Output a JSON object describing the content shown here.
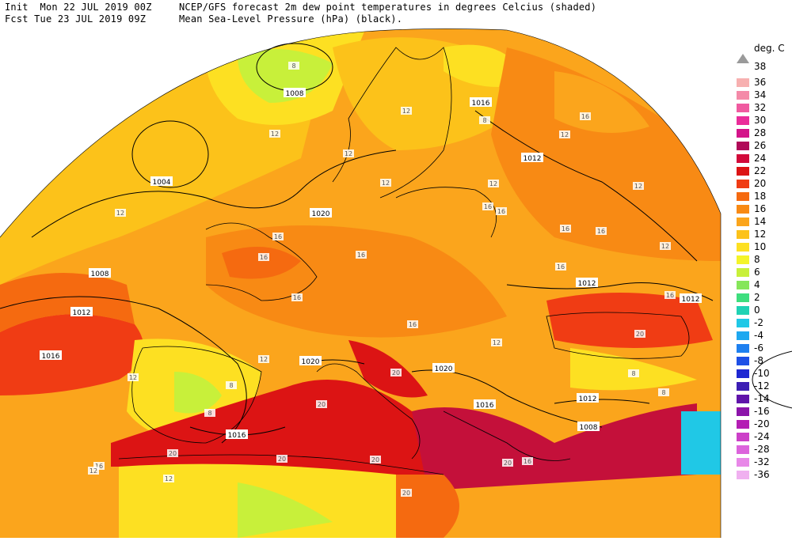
{
  "header": {
    "init_label": "Init  Mon 22 JUL 2019 00Z",
    "fcst_label": "Fcst Tue 23 JUL 2019 09Z",
    "title_line1": "NCEP/GFS forecast 2m dew point temperatures in degrees Celcius (shaded)",
    "title_line2": "Mean Sea-Level Pressure (hPa) (black)."
  },
  "legend": {
    "unit": "deg. C",
    "top_value": "38",
    "entries": [
      {
        "label": "36",
        "color": "#f7b0b0"
      },
      {
        "label": "34",
        "color": "#f48aa8"
      },
      {
        "label": "32",
        "color": "#f05aa0"
      },
      {
        "label": "30",
        "color": "#ea2c9a"
      },
      {
        "label": "28",
        "color": "#d4148a"
      },
      {
        "label": "26",
        "color": "#b00a58"
      },
      {
        "label": "24",
        "color": "#d20a3a"
      },
      {
        "label": "22",
        "color": "#dc1414"
      },
      {
        "label": "20",
        "color": "#f03c14"
      },
      {
        "label": "18",
        "color": "#f56a10"
      },
      {
        "label": "16",
        "color": "#f88a14"
      },
      {
        "label": "14",
        "color": "#fba51c"
      },
      {
        "label": "12",
        "color": "#fcc21a"
      },
      {
        "label": "10",
        "color": "#fde022"
      },
      {
        "label": "8",
        "color": "#f4f42a"
      },
      {
        "label": "6",
        "color": "#c8f03a"
      },
      {
        "label": "4",
        "color": "#86e65a"
      },
      {
        "label": "2",
        "color": "#3ede7e"
      },
      {
        "label": "0",
        "color": "#20d2b4"
      },
      {
        "label": "-2",
        "color": "#20c8e6"
      },
      {
        "label": "-4",
        "color": "#1ea8f0"
      },
      {
        "label": "-6",
        "color": "#1e80f0"
      },
      {
        "label": "-8",
        "color": "#1e50e6"
      },
      {
        "label": "-10",
        "color": "#1e28d2"
      },
      {
        "label": "-12",
        "color": "#3c1eb4"
      },
      {
        "label": "-14",
        "color": "#6014aa"
      },
      {
        "label": "-16",
        "color": "#8c14aa"
      },
      {
        "label": "-20",
        "color": "#b41eb4"
      },
      {
        "label": "-24",
        "color": "#cc40c8"
      },
      {
        "label": "-28",
        "color": "#dc64dc"
      },
      {
        "label": "-32",
        "color": "#e888e8"
      },
      {
        "label": "-36",
        "color": "#f0b0f0"
      }
    ]
  },
  "map": {
    "isobar_labels": [
      "1008",
      "1016",
      "1004",
      "1020",
      "1008",
      "1012",
      "1016",
      "1012",
      "1012",
      "1012",
      "1020",
      "1020",
      "1016",
      "1012",
      "1008",
      "1016",
      "1012"
    ],
    "dewpoint_labels": [
      "12",
      "12",
      "12",
      "12",
      "12",
      "12",
      "12",
      "12",
      "16",
      "16",
      "16",
      "16",
      "16",
      "16",
      "16",
      "16",
      "16",
      "16",
      "16",
      "16",
      "12",
      "12",
      "8",
      "8",
      "8",
      "8",
      "8",
      "8",
      "20",
      "20",
      "20",
      "20",
      "20",
      "20",
      "20",
      "20",
      "16",
      "16",
      "12",
      "12",
      "12",
      "12"
    ]
  }
}
